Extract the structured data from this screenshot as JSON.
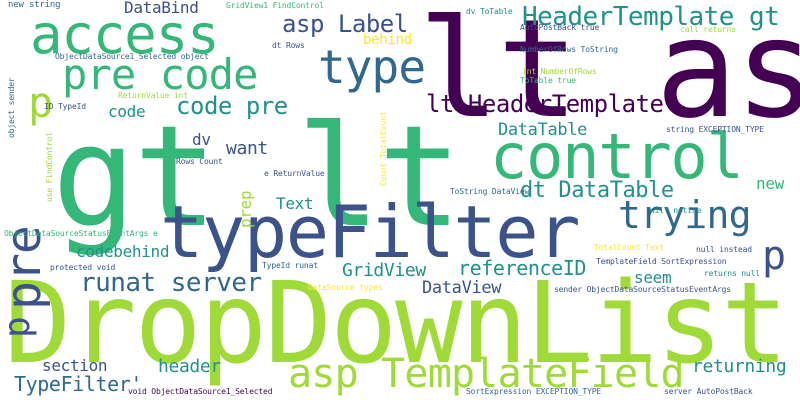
{
  "palette": {
    "dark_purple": "#440154",
    "indigo": "#3b528b",
    "blue": "#31688e",
    "teal": "#21918c",
    "green": "#35b779",
    "yellow_green": "#a0da39",
    "yellow": "#fde725"
  },
  "words": [
    "DropDownList",
    "gt lt",
    "lt asp",
    "typeFilter",
    "control",
    "access",
    "asp TemplateField",
    "pre code",
    "type",
    "HeaderTemplate gt",
    "lt HeaderTemplate",
    "trying",
    "asp Label",
    "runat server",
    "code pre",
    "dt DataTable",
    "GridView",
    "DataView",
    "DataTable",
    "referenceID",
    "codebehind",
    "TypeFilter'",
    "section",
    "header",
    "returning",
    "want",
    "prep",
    "behind",
    "DataBind",
    "Text",
    "seem",
    "new",
    "dv",
    "code",
    "pre",
    "p",
    "p",
    "p",
    "new string",
    "GridView1 FindControl",
    "dv ToTable",
    "ObjectDataSource1_Selected object",
    "AutoPostBack true",
    "call returns",
    "NumberOfRows ToString",
    "int NumberOfRows",
    "ToTable true",
    "dt Rows",
    "object sender",
    "ReturnValue int",
    "ID TypeId",
    "use FindControl",
    "Count TotalCount",
    "Rows Count",
    "e ReturnValue",
    "string EXCEPTION_TYPE",
    "ToString DataView",
    "will notice",
    "ObjectDataSourceStatusEventArgs e",
    "TotalCount Text",
    "null instead",
    "TemplateField SortExpression",
    "TypeId runat",
    "returns null",
    "protected void",
    "DataSource types",
    "sender ObjectDataSourceStatusEventArgs",
    "void ObjectDataSource1_Selected",
    "SortExpression EXCEPTION_TYPE",
    "server AutoPostBack"
  ]
}
